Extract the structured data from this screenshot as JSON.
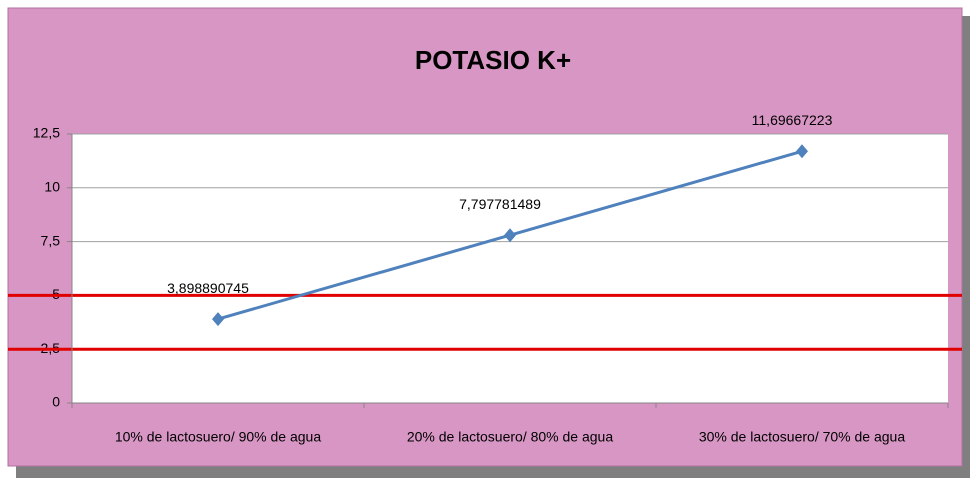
{
  "chart_data": {
    "type": "line",
    "title": "POTASIO K+",
    "categories": [
      "10% de lactosuero/ 90% de agua",
      "20% de lactosuero/ 80% de agua",
      "30% de lactosuero/ 70% de agua"
    ],
    "series": [
      {
        "name": "Potasio K+",
        "color": "#4f81bd",
        "values": [
          3.898890745,
          7.797781489,
          11.69667223
        ],
        "value_labels": [
          "3,898890745",
          "7,797781489",
          "11,69667223"
        ]
      }
    ],
    "ylim": [
      0,
      12.5
    ],
    "yticks": [
      0,
      {
        "value": 2.5,
        "label": "2,5"
      },
      5,
      {
        "value": 7.5,
        "label": "7,5"
      },
      10,
      {
        "value": 12.5,
        "label": "12,5"
      }
    ],
    "grid": true,
    "reference_lines": [
      {
        "value": 5,
        "color": "#e00000"
      },
      {
        "value": 2.5,
        "color": "#e00000"
      }
    ]
  }
}
